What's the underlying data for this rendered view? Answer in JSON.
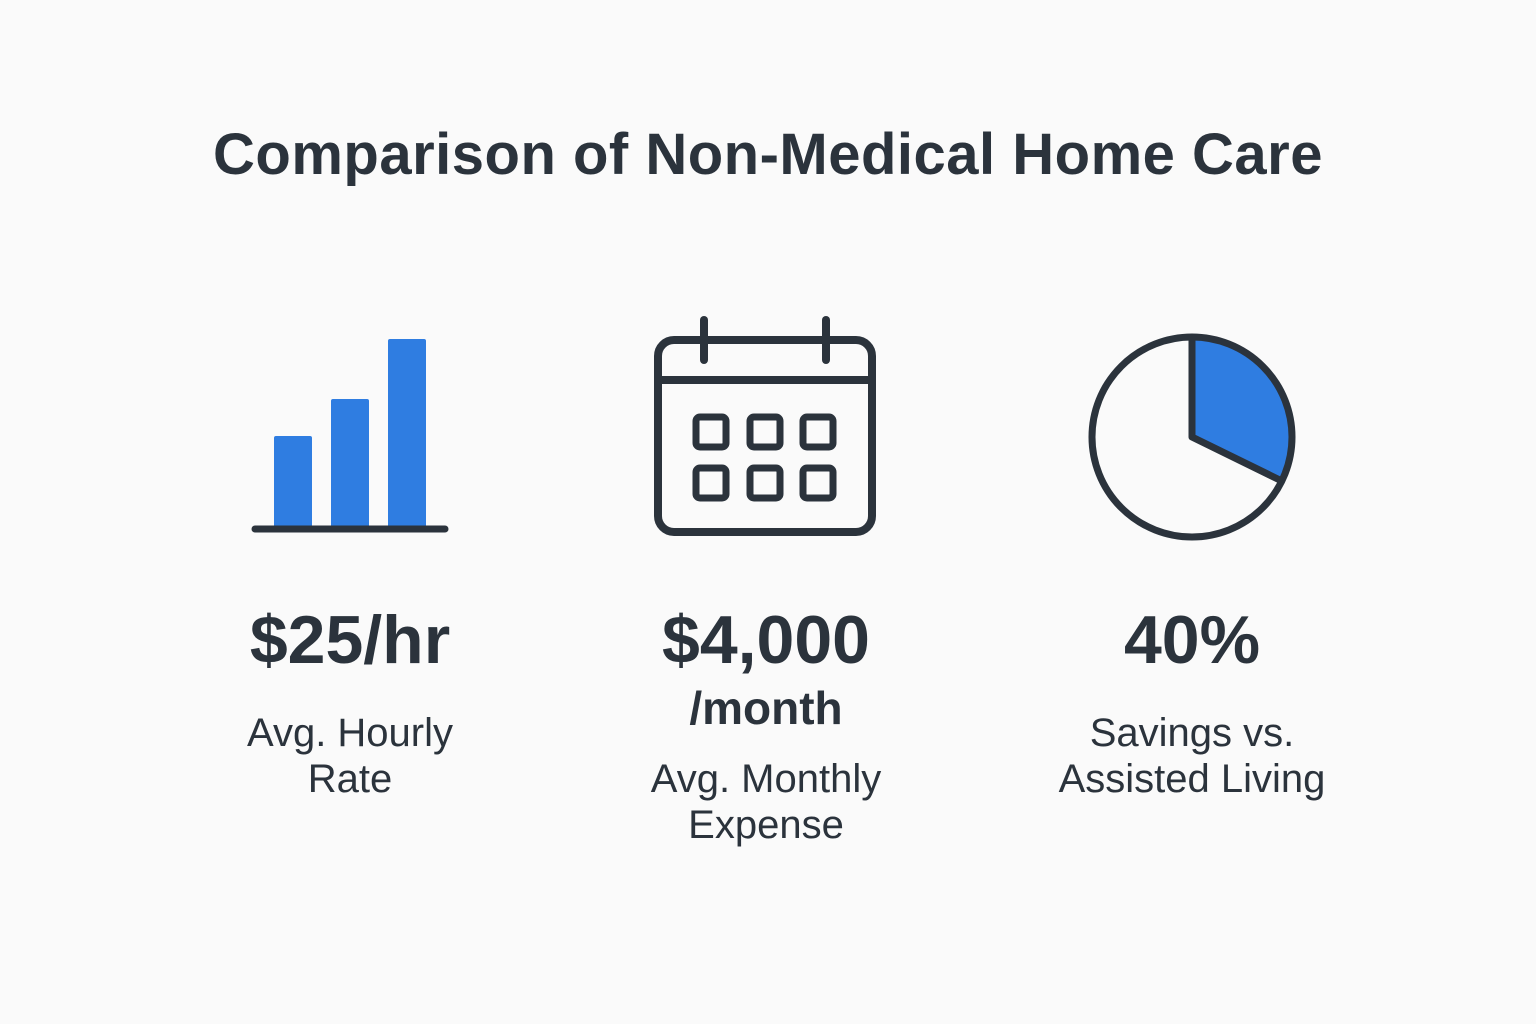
{
  "title": "Comparison of Non-Medical Home Care",
  "colors": {
    "accent": "#2f7de1",
    "ink": "#2b333c",
    "background": "#fafafa"
  },
  "cards": [
    {
      "icon": "bar-chart-icon",
      "value": "$25/hr",
      "label_lines": [
        "Avg. Hourly",
        "Rate"
      ]
    },
    {
      "icon": "calendar-icon",
      "value": "$4,000",
      "value_suffix": "/month",
      "label_lines": [
        "Avg. Monthly",
        "Expense"
      ]
    },
    {
      "icon": "pie-chart-icon",
      "value": "40%",
      "label_lines": [
        "Savings vs.",
        "Assisted Living"
      ]
    }
  ]
}
